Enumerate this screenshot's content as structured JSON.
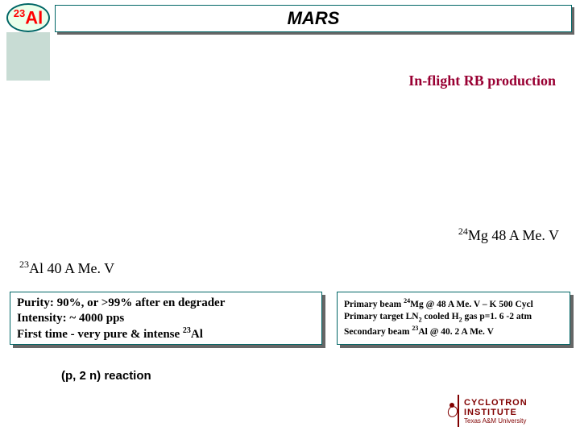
{
  "title": "MARS",
  "nuclide": {
    "mass": "23",
    "symbol": "Al"
  },
  "inflight": "In-flight RB production",
  "mg_label": {
    "mass": "24",
    "rest": "Mg 48 A Me. V"
  },
  "al_label": {
    "mass": "23",
    "rest": "Al 40 A Me. V"
  },
  "purity": {
    "line1": "Purity: 90%, or >99% after en degrader",
    "line2": "Intensity: ~ 4000 pps",
    "line3a": "First time - very pure & intense ",
    "line3_mass": "23",
    "line3b": "Al"
  },
  "primary": {
    "line1a": "Primary beam ",
    "line1_mass": "24",
    "line1b": "Mg @ 48 A Me. V – K 500 Cycl",
    "line2a": "Primary target LN",
    "line2_sub": "2",
    "line2b": " cooled H",
    "line2_sub2": "2",
    "line2c": " gas p=1. 6 -2 atm",
    "line3a": "Secondary beam ",
    "line3_mass": "23",
    "line3b": "Al @ 40. 2 A Me. V"
  },
  "reaction": "(p, 2 n) reaction",
  "logo": {
    "top": "CYCLOTRON",
    "mid": "INSTITUTE",
    "bot": "Texas A&M University"
  },
  "colors": {
    "teal": "#006666",
    "maroon": "#800000",
    "darkred": "#990033",
    "badge_bg": "#eaffea",
    "stripe": "#c8dcd4"
  }
}
